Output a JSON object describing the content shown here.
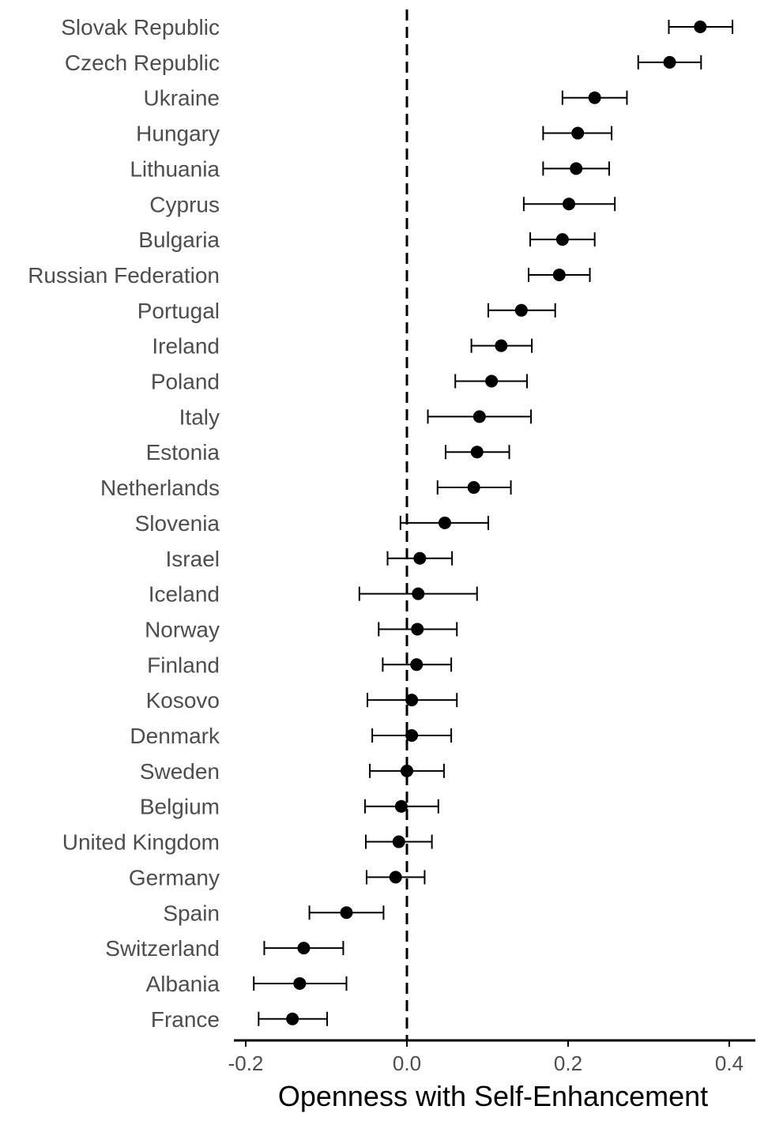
{
  "chart_data": {
    "type": "dot-errorbar",
    "xlabel": "Openness with Self-Enhancement",
    "xlim": [
      -0.215,
      0.435
    ],
    "x_ticks": [
      -0.2,
      0.0,
      0.2,
      0.4
    ],
    "x_tick_labels": [
      "-0.2",
      "0.0",
      "0.2",
      "0.4"
    ],
    "reference_line": 0.0,
    "reference_line_style": "dashed",
    "grid": false,
    "colors": {
      "point": "#000000",
      "text": "#4d4d4d",
      "axis": "#000000"
    },
    "rows": [
      {
        "label": "Slovak Republic",
        "estimate": 0.364,
        "lower": 0.325,
        "upper": 0.404
      },
      {
        "label": "Czech Republic",
        "estimate": 0.326,
        "lower": 0.287,
        "upper": 0.365
      },
      {
        "label": "Ukraine",
        "estimate": 0.233,
        "lower": 0.193,
        "upper": 0.273
      },
      {
        "label": "Hungary",
        "estimate": 0.212,
        "lower": 0.169,
        "upper": 0.254
      },
      {
        "label": "Lithuania",
        "estimate": 0.21,
        "lower": 0.169,
        "upper": 0.251
      },
      {
        "label": "Cyprus",
        "estimate": 0.201,
        "lower": 0.145,
        "upper": 0.258
      },
      {
        "label": "Bulgaria",
        "estimate": 0.193,
        "lower": 0.153,
        "upper": 0.233
      },
      {
        "label": "Russian Federation",
        "estimate": 0.189,
        "lower": 0.151,
        "upper": 0.227
      },
      {
        "label": "Portugal",
        "estimate": 0.142,
        "lower": 0.101,
        "upper": 0.184
      },
      {
        "label": "Ireland",
        "estimate": 0.117,
        "lower": 0.08,
        "upper": 0.155
      },
      {
        "label": "Poland",
        "estimate": 0.105,
        "lower": 0.06,
        "upper": 0.149
      },
      {
        "label": "Italy",
        "estimate": 0.09,
        "lower": 0.026,
        "upper": 0.154
      },
      {
        "label": "Estonia",
        "estimate": 0.087,
        "lower": 0.048,
        "upper": 0.127
      },
      {
        "label": "Netherlands",
        "estimate": 0.083,
        "lower": 0.038,
        "upper": 0.129
      },
      {
        "label": "Slovenia",
        "estimate": 0.047,
        "lower": -0.008,
        "upper": 0.101
      },
      {
        "label": "Israel",
        "estimate": 0.016,
        "lower": -0.024,
        "upper": 0.056
      },
      {
        "label": "Iceland",
        "estimate": 0.014,
        "lower": -0.059,
        "upper": 0.087
      },
      {
        "label": "Norway",
        "estimate": 0.013,
        "lower": -0.035,
        "upper": 0.062
      },
      {
        "label": "Finland",
        "estimate": 0.012,
        "lower": -0.03,
        "upper": 0.055
      },
      {
        "label": "Kosovo",
        "estimate": 0.006,
        "lower": -0.049,
        "upper": 0.062
      },
      {
        "label": "Denmark",
        "estimate": 0.006,
        "lower": -0.043,
        "upper": 0.055
      },
      {
        "label": "Sweden",
        "estimate": 0.0,
        "lower": -0.046,
        "upper": 0.046
      },
      {
        "label": "Belgium",
        "estimate": -0.007,
        "lower": -0.052,
        "upper": 0.039
      },
      {
        "label": "United Kingdom",
        "estimate": -0.01,
        "lower": -0.051,
        "upper": 0.031
      },
      {
        "label": "Germany",
        "estimate": -0.014,
        "lower": -0.05,
        "upper": 0.022
      },
      {
        "label": "Spain",
        "estimate": -0.075,
        "lower": -0.121,
        "upper": -0.029
      },
      {
        "label": "Switzerland",
        "estimate": -0.128,
        "lower": -0.177,
        "upper": -0.079
      },
      {
        "label": "Albania",
        "estimate": -0.133,
        "lower": -0.19,
        "upper": -0.075
      },
      {
        "label": "France",
        "estimate": -0.142,
        "lower": -0.184,
        "upper": -0.099
      }
    ]
  }
}
